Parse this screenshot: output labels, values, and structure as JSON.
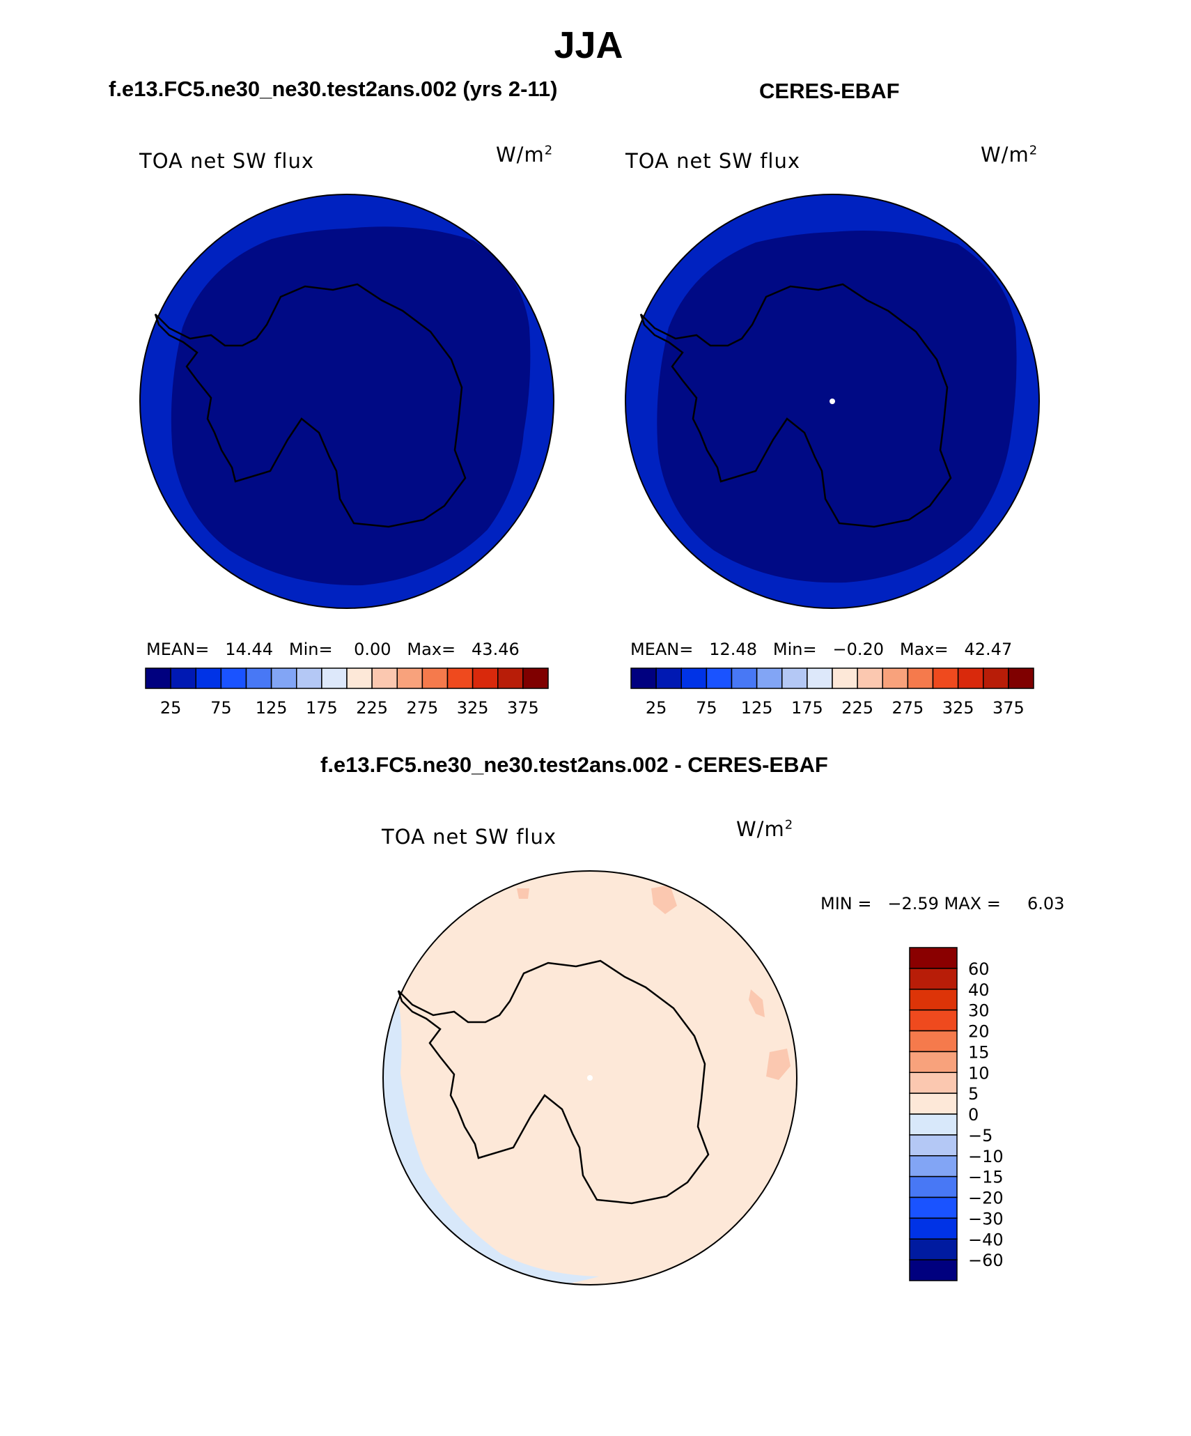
{
  "figure": {
    "title": "JJA",
    "panel1_title": "f.e13.FC5.ne30_ne30.test2ans.002 (yrs 2-11)",
    "panel2_title": "CERES-EBAF",
    "diff_title": "f.e13.FC5.ne30_ne30.test2ans.002 - CERES-EBAF"
  },
  "chart_data": [
    {
      "type": "heatmap",
      "variable": "TOA net SW flux",
      "units": "W/m",
      "units_exponent": "2",
      "stats": {
        "mean_label": "MEAN=",
        "mean": "14.44",
        "min_label": "Min=",
        "min": "0.00",
        "max_label": "Max=",
        "max": "43.46"
      },
      "colorbar_ticks": [
        "25",
        "75",
        "125",
        "175",
        "225",
        "275",
        "325",
        "375"
      ]
    },
    {
      "type": "heatmap",
      "variable": "TOA net SW flux",
      "units": "W/m",
      "units_exponent": "2",
      "stats": {
        "mean_label": "MEAN=",
        "mean": "12.48",
        "min_label": "Min=",
        "min": "−0.20",
        "max_label": "Max=",
        "max": "42.47"
      },
      "colorbar_ticks": [
        "25",
        "75",
        "125",
        "175",
        "225",
        "275",
        "325",
        "375"
      ]
    },
    {
      "type": "heatmap",
      "variable": "TOA net SW flux",
      "units": "W/m",
      "units_exponent": "2",
      "stats_text": "MIN =   −2.59 MAX =     6.03",
      "colorbar_ticks": [
        "60",
        "40",
        "30",
        "20",
        "15",
        "10",
        "5",
        "0",
        "−5",
        "−10",
        "−15",
        "−20",
        "−30",
        "−40",
        "−60"
      ]
    }
  ],
  "colors": {
    "abs_scale": [
      "#00007f",
      "#0019b3",
      "#0033e6",
      "#1a53ff",
      "#4878f5",
      "#82a5f5",
      "#b4c8f5",
      "#dde8fa",
      "#fde8d8",
      "#fbc8b0",
      "#f8a27c",
      "#f57a4c",
      "#ef4a1e",
      "#d9290c",
      "#b81d08",
      "#7f0000"
    ],
    "diff_scale": [
      "#00007f",
      "#001ba0",
      "#0033e6",
      "#1a53ff",
      "#4878f5",
      "#82a5f5",
      "#b4c8f5",
      "#d8e8fa",
      "#fde8d8",
      "#fbc8b0",
      "#f8a27c",
      "#f57a4c",
      "#ef4a1e",
      "#dd3408",
      "#b81d08",
      "#8a0000"
    ],
    "ocean_abs": "#0022c0",
    "interior_abs": "#000a85",
    "diff_background": "#fde8d8",
    "diff_negative": "#d8e8fa",
    "diff_positive": "#fbc8b0"
  }
}
